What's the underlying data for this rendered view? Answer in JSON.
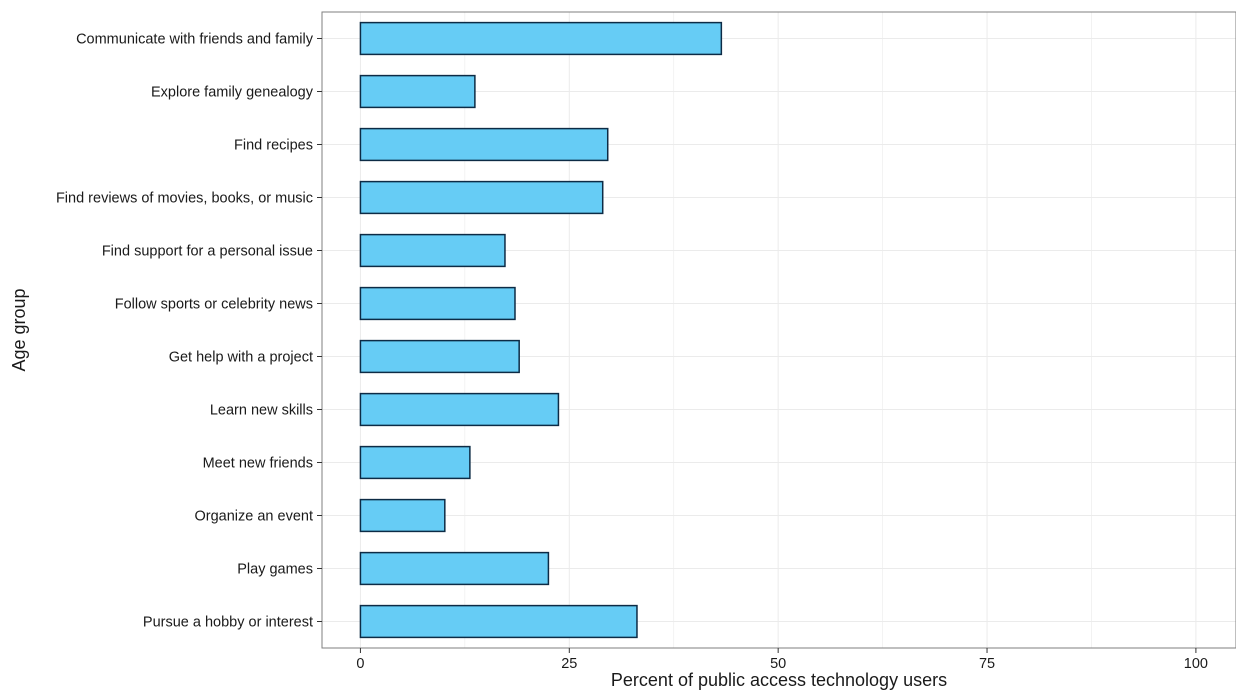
{
  "chart_data": {
    "type": "bar",
    "orientation": "horizontal",
    "title": "",
    "xlabel": "Percent of public access technology users",
    "ylabel": "Age group",
    "xlim": [
      -4.6,
      104.8
    ],
    "xticks": [
      0,
      25,
      50,
      75,
      100
    ],
    "grid": true,
    "legend": "none",
    "categories": [
      "Communicate with friends and family",
      "Explore family genealogy",
      "Find recipes",
      "Find reviews of movies, books, or music",
      "Find support for a personal issue",
      "Follow sports or celebrity news",
      "Get help with a project",
      "Learn new skills",
      "Meet new friends",
      "Organize an event",
      "Play games",
      "Pursue a hobby or interest"
    ],
    "values": [
      43.2,
      13.7,
      29.6,
      29.0,
      17.3,
      18.5,
      19.0,
      23.7,
      13.1,
      10.1,
      22.5,
      33.1
    ],
    "colors": {
      "bar_fill": "#66ccf5",
      "bar_stroke": "#0d2b45",
      "grid": "#ebebeb",
      "panel_border": "#7f7f7f",
      "text": "#1a1a1a"
    }
  }
}
